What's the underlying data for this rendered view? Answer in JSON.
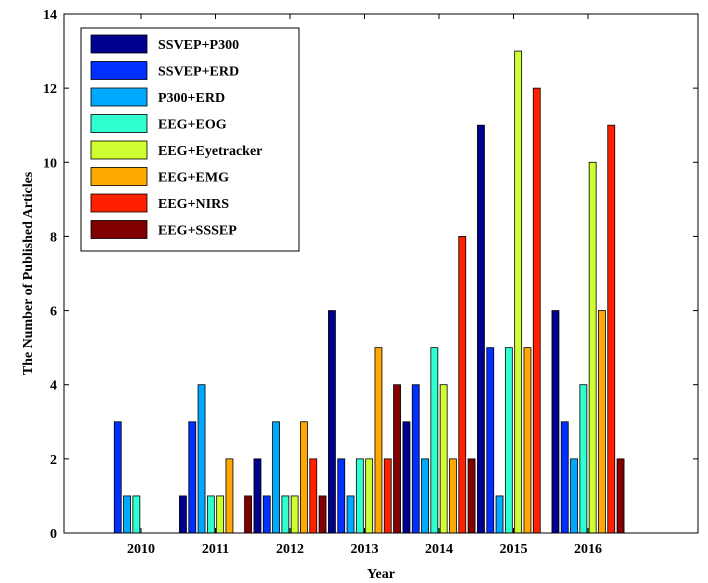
{
  "chart_data": {
    "type": "bar",
    "title": "",
    "xlabel": "Year",
    "ylabel": "The  Number of Published Articles",
    "categories": [
      "2010",
      "2011",
      "2012",
      "2013",
      "2014",
      "2015",
      "2016"
    ],
    "ylim": [
      0,
      14
    ],
    "yticks": [
      "0",
      "2",
      "4",
      "6",
      "8",
      "10",
      "12",
      "14"
    ],
    "grid": false,
    "legend_position": "top-left",
    "series": [
      {
        "name": "SSVEP+P300",
        "color": "#00008f",
        "values": [
          0,
          1,
          2,
          6,
          3,
          11,
          6
        ]
      },
      {
        "name": "SSVEP+ERD",
        "color": "#0030ff",
        "values": [
          3,
          3,
          1,
          2,
          4,
          5,
          3
        ]
      },
      {
        "name": "P300+ERD",
        "color": "#00a8ff",
        "values": [
          1,
          4,
          3,
          1,
          2,
          1,
          2
        ]
      },
      {
        "name": "EEG+EOG",
        "color": "#30ffcf",
        "values": [
          1,
          1,
          1,
          2,
          5,
          5,
          4
        ]
      },
      {
        "name": "EEG+Eyetracker",
        "color": "#cfff30",
        "values": [
          0,
          1,
          1,
          2,
          4,
          13,
          10
        ]
      },
      {
        "name": "EEG+EMG",
        "color": "#ffa800",
        "values": [
          0,
          2,
          3,
          5,
          2,
          5,
          6
        ]
      },
      {
        "name": "EEG+NIRS",
        "color": "#ff2000",
        "values": [
          0,
          0,
          2,
          2,
          8,
          12,
          11
        ]
      },
      {
        "name": "EEG+SSSEP",
        "color": "#800000",
        "values": [
          0,
          1,
          1,
          4,
          2,
          0,
          2
        ]
      }
    ]
  }
}
